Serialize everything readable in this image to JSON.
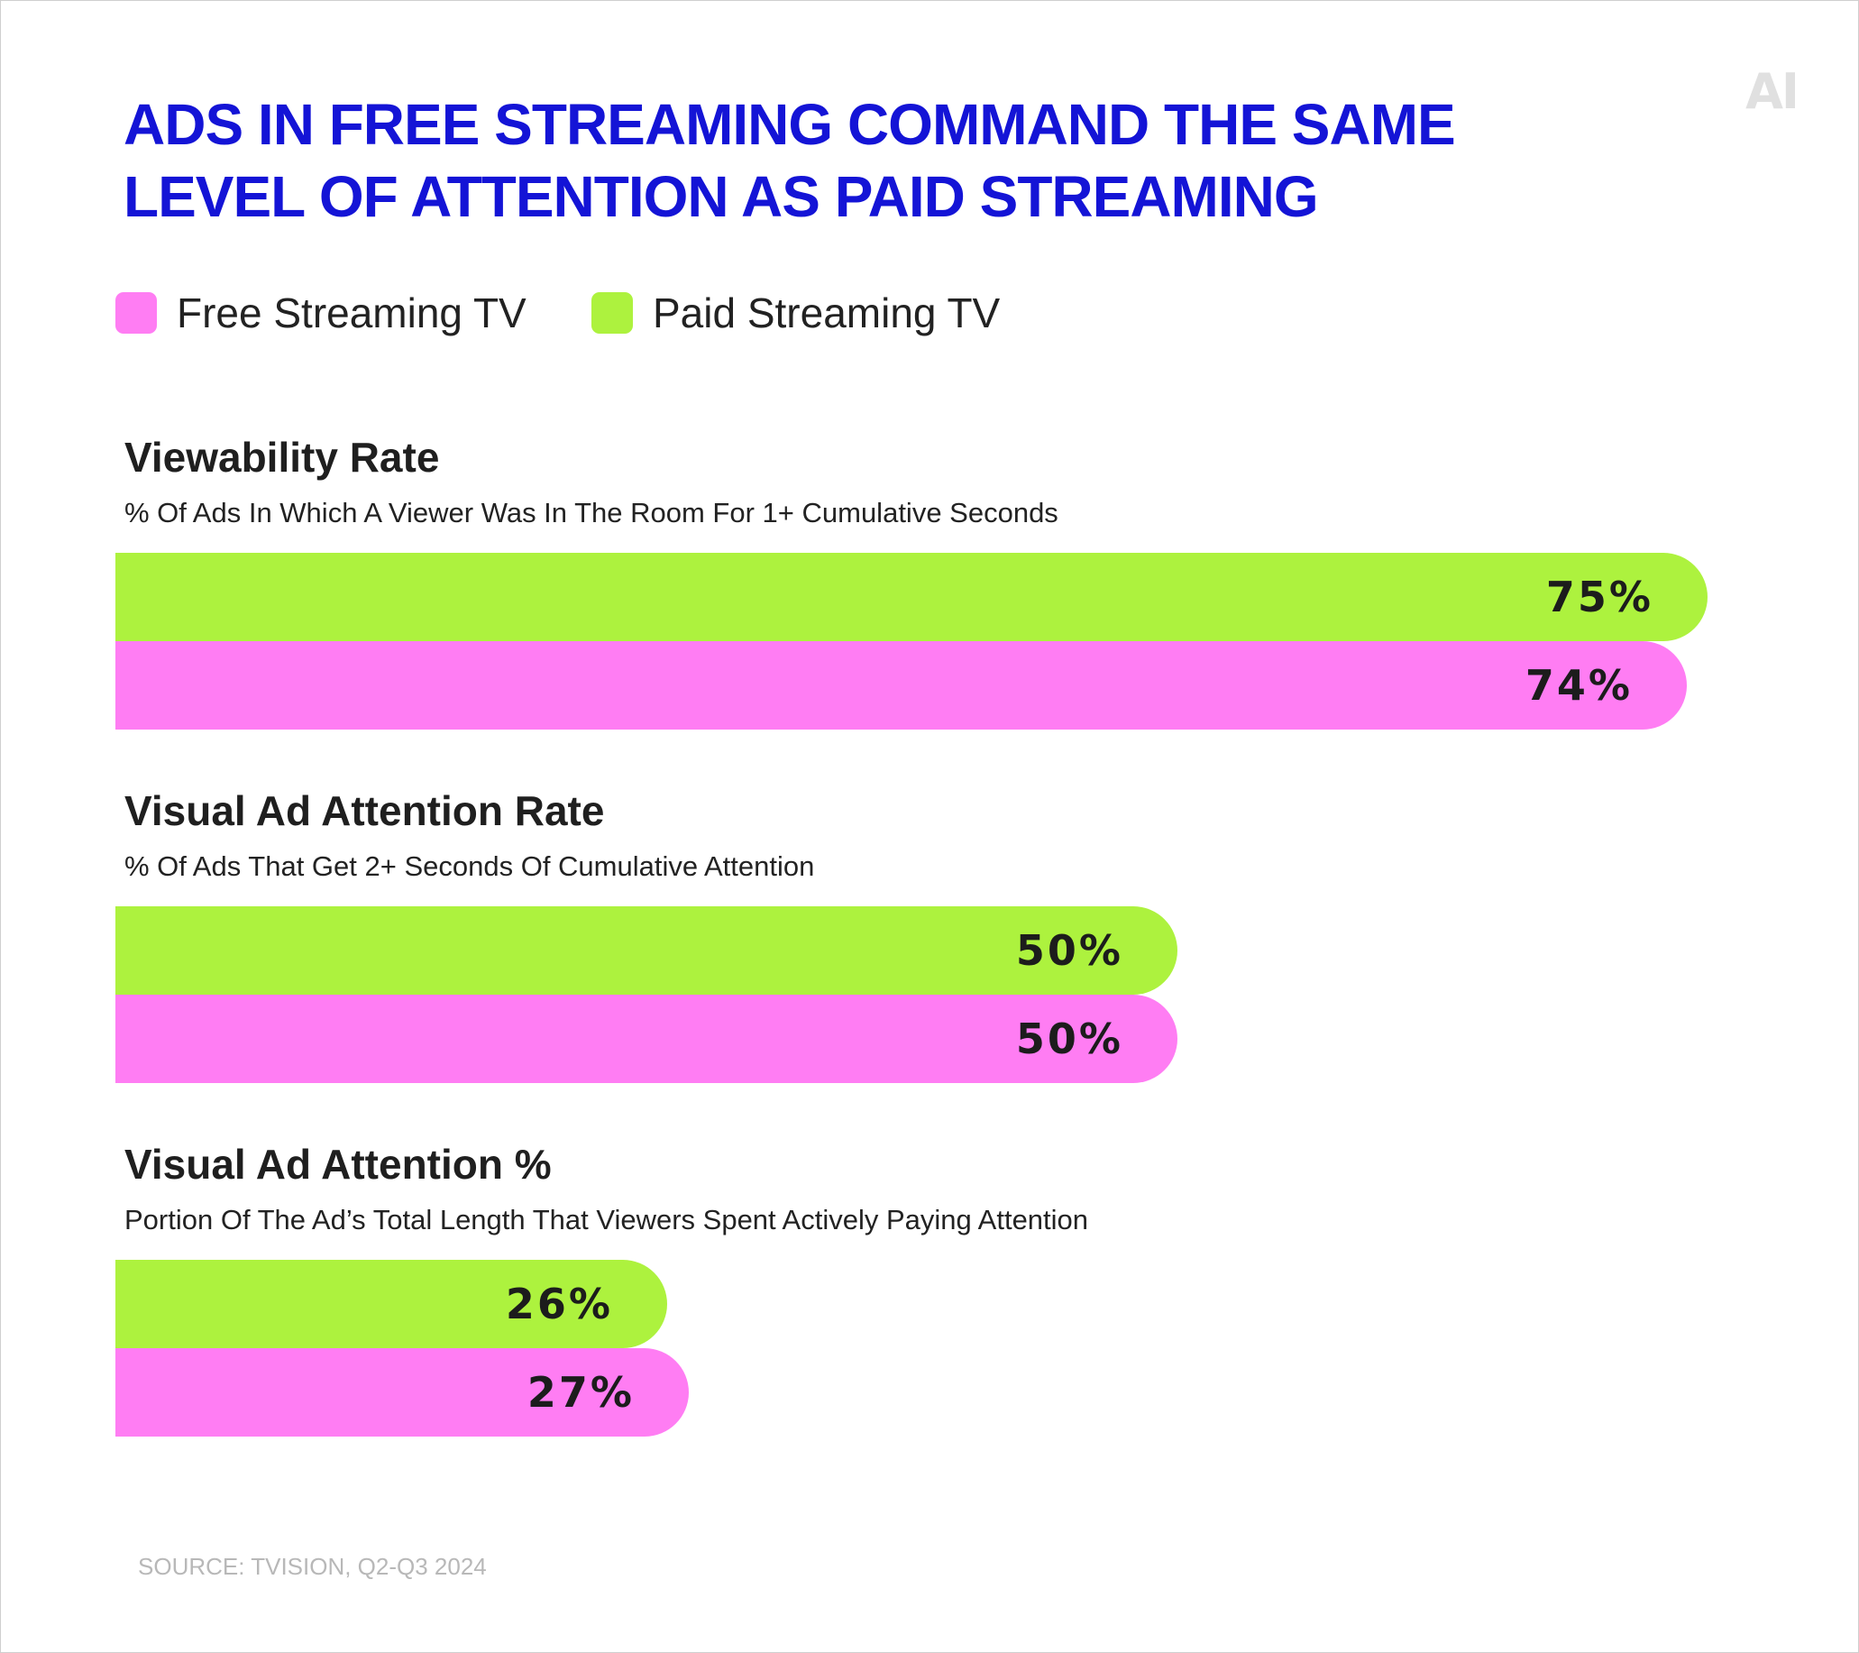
{
  "title_lines": [
    "ADS IN FREE STREAMING COMMAND THE SAME",
    "LEVEL OF ATTENTION AS PAID STREAMING"
  ],
  "logo_text": "AI",
  "legend": [
    {
      "label": "Free Streaming TV",
      "color": "#ff7df3"
    },
    {
      "label": "Paid Streaming TV",
      "color": "#adf23e"
    }
  ],
  "source": "SOURCE: TVISION, Q2-Q3 2024",
  "chart_data": {
    "type": "bar",
    "orientation": "horizontal",
    "value_unit": "%",
    "value_max": 100,
    "panels": [
      {
        "title": "Viewability Rate",
        "subtitle": "% Of Ads In Which A Viewer Was In The Room For 1+ Cumulative Seconds",
        "series": [
          {
            "name": "Paid Streaming TV",
            "value": 75,
            "label": "75%",
            "color": "#adf23e"
          },
          {
            "name": "Free Streaming TV",
            "value": 74,
            "label": "74%",
            "color": "#ff7df3"
          }
        ]
      },
      {
        "title": "Visual Ad Attention Rate",
        "subtitle": "% Of Ads That Get 2+ Seconds Of Cumulative Attention",
        "series": [
          {
            "name": "Paid Streaming TV",
            "value": 50,
            "label": "50%",
            "color": "#adf23e"
          },
          {
            "name": "Free Streaming TV",
            "value": 50,
            "label": "50%",
            "color": "#ff7df3"
          }
        ]
      },
      {
        "title": "Visual Ad Attention %",
        "subtitle": "Portion Of The Ad’s Total Length That Viewers Spent Actively Paying Attention",
        "series": [
          {
            "name": "Paid Streaming TV",
            "value": 26,
            "label": "26%",
            "color": "#adf23e"
          },
          {
            "name": "Free Streaming TV",
            "value": 27,
            "label": "27%",
            "color": "#ff7df3"
          }
        ]
      }
    ]
  }
}
